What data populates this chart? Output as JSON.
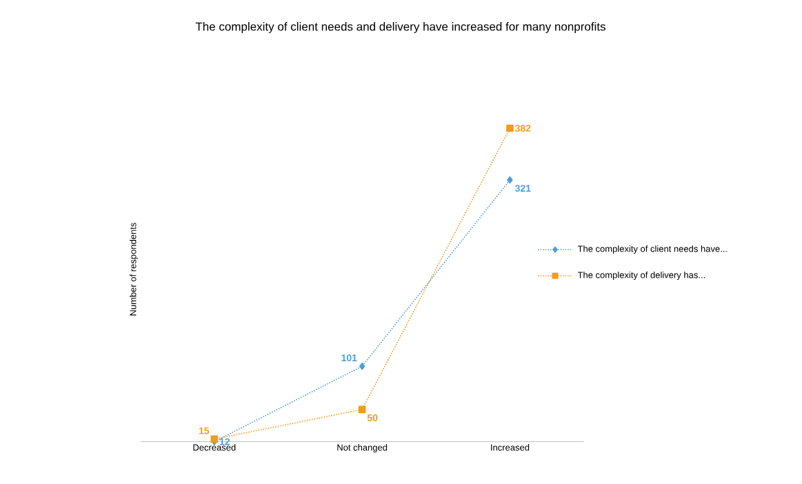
{
  "chart_data": {
    "type": "line",
    "title": "The complexity of client needs and delivery have increased for many nonprofits",
    "ylabel": "Number of respondents",
    "categories": [
      "Decreased",
      "Not changed",
      "Increased"
    ],
    "series": [
      {
        "name": "The complexity of client needs have...",
        "color": "#4a9fe0",
        "values": [
          12,
          101,
          321
        ],
        "marker": "diamond"
      },
      {
        "name": "The complexity of delivery has...",
        "color": "#f29b1f",
        "values": [
          15,
          50,
          382
        ],
        "marker": "square"
      }
    ],
    "line_style": "dotted",
    "data_labels": true,
    "legend": "right",
    "tick_labels": "x",
    "grid": false
  }
}
